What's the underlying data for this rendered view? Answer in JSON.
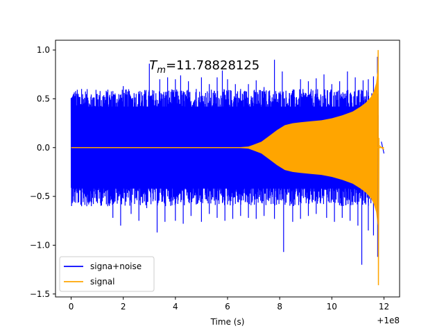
{
  "chart_data": {
    "type": "line",
    "xlabel": "Time (s)",
    "ylabel": "",
    "x_offset_label": "+1e8",
    "xlim": [
      -0.6,
      12.6
    ],
    "ylim": [
      -1.53,
      1.1
    ],
    "x_ticks": [
      0,
      2,
      4,
      6,
      8,
      10,
      12
    ],
    "x_tick_labels": [
      "0",
      "2",
      "4",
      "6",
      "8",
      "10",
      "12"
    ],
    "y_ticks": [
      1.0,
      0.5,
      0.0,
      -0.5,
      -1.0,
      -1.5
    ],
    "y_tick_labels": [
      "1.0",
      "0.5",
      "0.0",
      "−0.5",
      "−1.0",
      "−1.5"
    ],
    "grid": false,
    "legend_position": "lower-left",
    "annotation": {
      "text_main": "T",
      "text_sub": "m",
      "text_rest": "=11.78828125",
      "x": 3.0,
      "y": 0.8
    },
    "series": [
      {
        "name": "signa+noise",
        "color": "#0000ff",
        "description": "noise envelope",
        "x_range": [
          0,
          12
        ],
        "upper_typical": 0.6,
        "lower_typical": -0.6,
        "upper_peaks": [
          [
            0.1,
            0.55
          ],
          [
            0.4,
            0.6
          ],
          [
            0.6,
            0.45
          ],
          [
            1.0,
            0.55
          ],
          [
            1.4,
            0.52
          ],
          [
            1.6,
            0.58
          ],
          [
            2.0,
            0.63
          ],
          [
            2.3,
            0.5
          ],
          [
            2.6,
            0.55
          ],
          [
            2.7,
            0.57
          ],
          [
            3.0,
            0.86
          ],
          [
            3.4,
            0.7
          ],
          [
            3.7,
            0.72
          ],
          [
            4.0,
            0.7
          ],
          [
            4.2,
            0.74
          ],
          [
            4.5,
            0.68
          ],
          [
            4.8,
            0.6
          ],
          [
            5.0,
            0.72
          ],
          [
            5.3,
            0.65
          ],
          [
            5.6,
            0.72
          ],
          [
            5.8,
            0.79
          ],
          [
            6.0,
            0.7
          ],
          [
            6.3,
            0.65
          ],
          [
            6.5,
            0.6
          ],
          [
            6.8,
            0.65
          ],
          [
            7.1,
            0.69
          ],
          [
            7.4,
            0.62
          ],
          [
            7.8,
            0.9
          ],
          [
            8.1,
            0.78
          ],
          [
            8.5,
            0.56
          ],
          [
            8.8,
            0.7
          ],
          [
            9.1,
            0.68
          ],
          [
            9.4,
            0.71
          ],
          [
            9.7,
            0.75
          ],
          [
            10.0,
            0.65
          ],
          [
            10.3,
            0.68
          ],
          [
            10.6,
            0.78
          ],
          [
            10.9,
            0.72
          ],
          [
            11.2,
            0.69
          ],
          [
            11.4,
            0.7
          ],
          [
            11.6,
            0.73
          ],
          [
            11.75,
            0.93
          ]
        ],
        "lower_peaks": [
          [
            0.1,
            -0.5
          ],
          [
            0.4,
            -0.6
          ],
          [
            0.6,
            -0.6
          ],
          [
            1.0,
            -0.55
          ],
          [
            1.4,
            -0.6
          ],
          [
            1.6,
            -0.72
          ],
          [
            1.9,
            -0.8
          ],
          [
            2.3,
            -0.68
          ],
          [
            2.6,
            -0.75
          ],
          [
            2.9,
            -0.62
          ],
          [
            3.3,
            -0.87
          ],
          [
            3.6,
            -0.76
          ],
          [
            4.0,
            -0.75
          ],
          [
            4.3,
            -0.78
          ],
          [
            4.6,
            -0.7
          ],
          [
            5.0,
            -0.76
          ],
          [
            5.3,
            -0.68
          ],
          [
            5.6,
            -0.72
          ],
          [
            5.9,
            -0.75
          ],
          [
            6.2,
            -0.73
          ],
          [
            6.5,
            -0.7
          ],
          [
            6.8,
            -0.72
          ],
          [
            7.1,
            -0.73
          ],
          [
            7.4,
            -0.7
          ],
          [
            7.8,
            -0.73
          ],
          [
            8.15,
            -1.07
          ],
          [
            8.5,
            -0.76
          ],
          [
            8.8,
            -0.73
          ],
          [
            9.1,
            -0.7
          ],
          [
            9.4,
            -0.68
          ],
          [
            9.8,
            -0.72
          ],
          [
            10.1,
            -0.76
          ],
          [
            10.4,
            -0.72
          ],
          [
            10.7,
            -0.75
          ],
          [
            11.0,
            -0.8
          ],
          [
            11.15,
            -1.2
          ],
          [
            11.4,
            -0.85
          ],
          [
            11.6,
            -0.9
          ],
          [
            11.76,
            -1.12
          ]
        ],
        "tail_x": [
          11.9,
          12.0
        ],
        "tail_amp": 0.06
      },
      {
        "name": "signal",
        "color": "#ffa500",
        "description": "chirp envelope",
        "envelope": [
          [
            0.0,
            0.0
          ],
          [
            6.5,
            0.005
          ],
          [
            6.8,
            0.01
          ],
          [
            7.0,
            0.03
          ],
          [
            7.3,
            0.06
          ],
          [
            7.6,
            0.12
          ],
          [
            7.9,
            0.18
          ],
          [
            8.2,
            0.23
          ],
          [
            8.5,
            0.25
          ],
          [
            8.8,
            0.26
          ],
          [
            9.2,
            0.27
          ],
          [
            9.6,
            0.28
          ],
          [
            10.0,
            0.3
          ],
          [
            10.4,
            0.33
          ],
          [
            10.8,
            0.37
          ],
          [
            11.1,
            0.42
          ],
          [
            11.3,
            0.46
          ],
          [
            11.5,
            0.52
          ],
          [
            11.6,
            0.57
          ],
          [
            11.7,
            0.66
          ],
          [
            11.76,
            0.8
          ]
        ],
        "spike_x": 11.788,
        "spike_max": 1.0,
        "spike_min": -1.41,
        "tail_x": [
          11.82,
          12.0
        ],
        "tail_amp": 0.02
      }
    ]
  }
}
